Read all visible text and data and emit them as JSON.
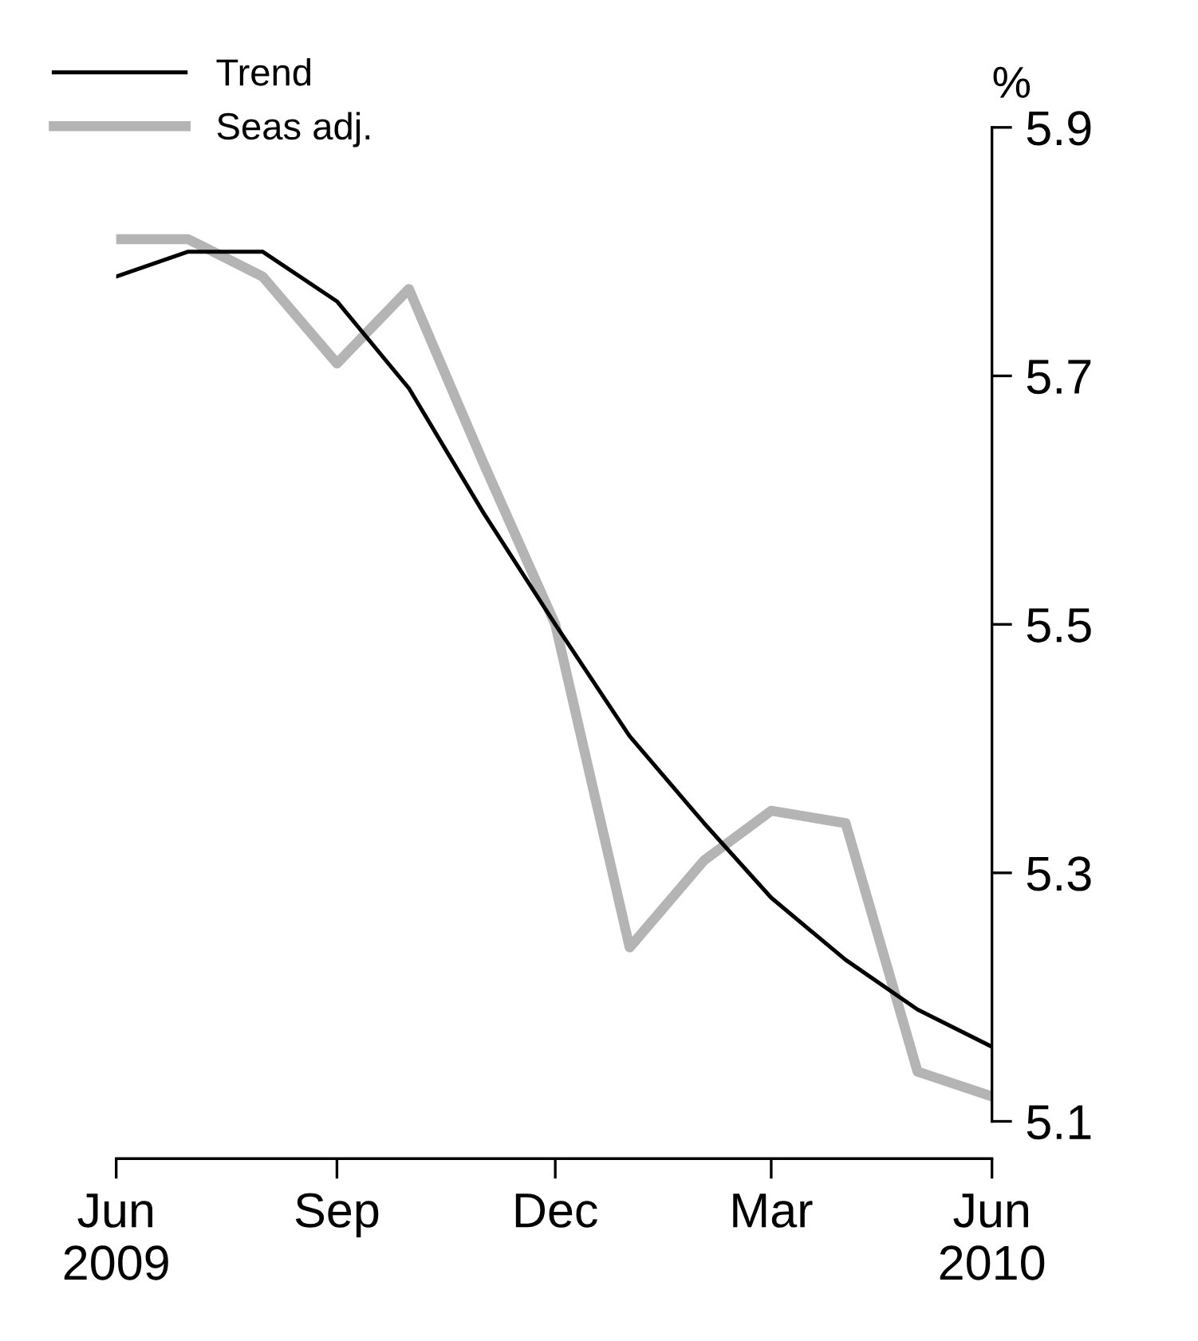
{
  "chart_data": {
    "type": "line",
    "ylabel": "%",
    "x": [
      "2009-06",
      "2009-07",
      "2009-08",
      "2009-09",
      "2009-10",
      "2009-11",
      "2009-12",
      "2010-01",
      "2010-02",
      "2010-03",
      "2010-04",
      "2010-05",
      "2010-06"
    ],
    "series": [
      {
        "name": "Trend",
        "color": "#000000",
        "values": [
          5.78,
          5.8,
          5.8,
          5.76,
          5.69,
          5.59,
          5.5,
          5.41,
          5.34,
          5.28,
          5.23,
          5.19,
          5.16
        ]
      },
      {
        "name": "Seas adj.",
        "color": "#b4b4b4",
        "values": [
          5.81,
          5.81,
          5.78,
          5.71,
          5.77,
          5.63,
          5.5,
          5.24,
          5.31,
          5.35,
          5.34,
          5.14,
          5.12
        ]
      }
    ],
    "xlim": [
      "2009-06",
      "2010-06"
    ],
    "xticks": [
      {
        "value": "2009-06",
        "label": "Jun\n2009"
      },
      {
        "value": "2009-09",
        "label": "Sep"
      },
      {
        "value": "2009-12",
        "label": "Dec"
      },
      {
        "value": "2010-03",
        "label": "Mar"
      },
      {
        "value": "2010-06",
        "label": "Jun\n2010"
      }
    ],
    "ylim": [
      5.07,
      5.9
    ],
    "yticks": [
      5.1,
      5.3,
      5.5,
      5.7,
      5.9
    ],
    "grid": false,
    "legend": "top left",
    "marker": "none",
    "line_style": "solid"
  }
}
